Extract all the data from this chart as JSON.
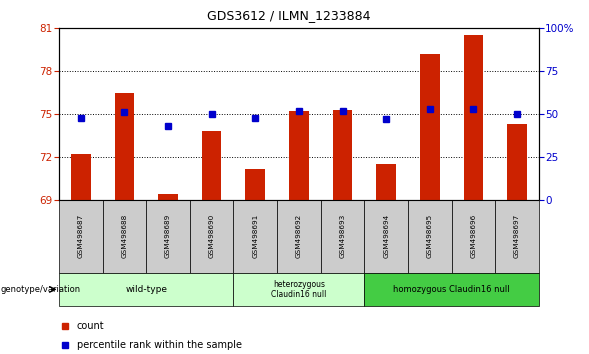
{
  "title": "GDS3612 / ILMN_1233884",
  "samples": [
    "GSM498687",
    "GSM498688",
    "GSM498689",
    "GSM498690",
    "GSM498691",
    "GSM498692",
    "GSM498693",
    "GSM498694",
    "GSM498695",
    "GSM498696",
    "GSM498697"
  ],
  "bar_values": [
    72.2,
    76.5,
    69.4,
    73.8,
    71.2,
    75.2,
    75.3,
    71.5,
    79.2,
    80.5,
    74.3
  ],
  "dot_values": [
    48,
    51,
    43,
    50,
    48,
    52,
    52,
    47,
    53,
    53,
    50
  ],
  "ylim_left": [
    69,
    81
  ],
  "ylim_right": [
    0,
    100
  ],
  "yticks_left": [
    69,
    72,
    75,
    78,
    81
  ],
  "yticks_right": [
    0,
    25,
    50,
    75,
    100
  ],
  "bar_color": "#cc2200",
  "dot_color": "#0000cc",
  "grid_yticks": [
    72,
    75,
    78
  ],
  "legend_count_label": "count",
  "legend_percentile_label": "percentile rank within the sample",
  "genotype_label": "genotype/variation",
  "group_wt_label": "wild-type",
  "group_het_label": "heterozygous\nClaudin16 null",
  "group_hom_label": "homozygous Claudin16 null",
  "group_wt_color": "#ccffcc",
  "group_het_color": "#ccffcc",
  "group_hom_color": "#44cc44",
  "cell_color": "#cccccc"
}
